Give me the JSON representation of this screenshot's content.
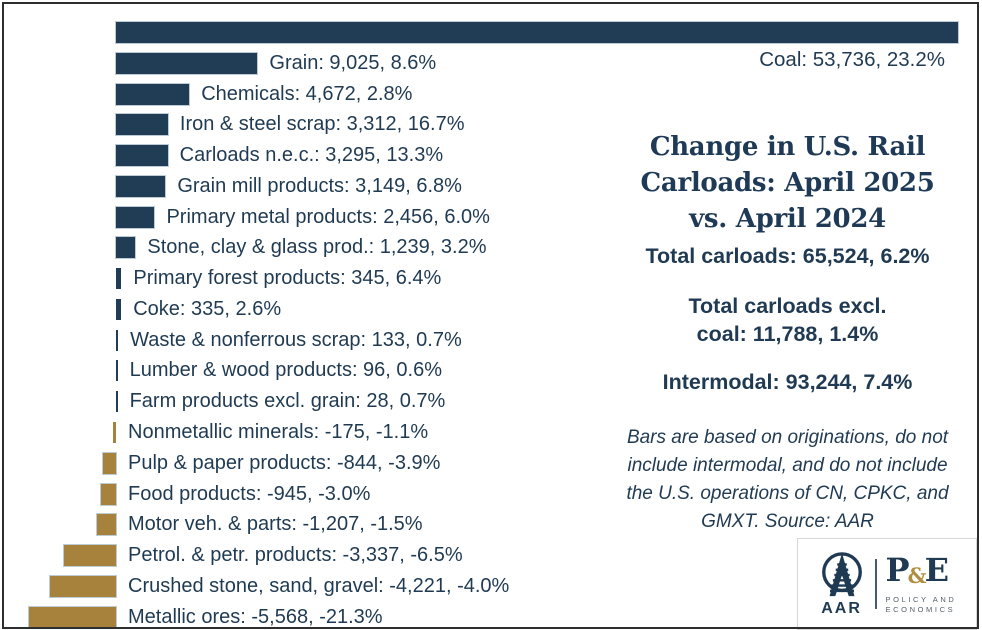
{
  "header": {
    "title_lines": [
      "Change in U.S. Rail",
      "Carloads: April 2025",
      "vs. April 2024"
    ]
  },
  "summary": {
    "total_carloads": "Total carloads: 65,524, 6.2%",
    "total_excl_coal_lines": [
      "Total carloads excl.",
      "coal: 11,788, 1.4%"
    ],
    "intermodal": "Intermodal: 93,244, 7.4%"
  },
  "note": "Bars are based on originations, do not include intermodal, and do not include the U.S. operations of CN, CPKC, and GMXT. Source: AAR",
  "logo": {
    "aar": "AAR",
    "pe_p": "P",
    "pe_amp": "&",
    "pe_e": "E",
    "policy_lines": [
      "POLICY AND",
      "ECONOMICS"
    ]
  },
  "colors": {
    "positive_bar": "#213C55",
    "negative_bar": "#A6823C",
    "text_navy": "#1F3A52"
  },
  "chart_data": {
    "type": "bar",
    "orientation": "horizontal",
    "value_label_format": "name: carloads_change, pct_change",
    "bars": [
      {
        "name": "Coal",
        "value": 53736,
        "pct": 23.2,
        "label": "Coal: 53,736, 23.2%"
      },
      {
        "name": "Grain",
        "value": 9025,
        "pct": 8.6,
        "label": "Grain: 9,025, 8.6%"
      },
      {
        "name": "Chemicals",
        "value": 4672,
        "pct": 2.8,
        "label": "Chemicals: 4,672, 2.8%"
      },
      {
        "name": "Iron & steel scrap",
        "value": 3312,
        "pct": 16.7,
        "label": "Iron & steel scrap: 3,312, 16.7%"
      },
      {
        "name": "Carloads n.e.c.",
        "value": 3295,
        "pct": 13.3,
        "label": "Carloads n.e.c.: 3,295, 13.3%"
      },
      {
        "name": "Grain mill products",
        "value": 3149,
        "pct": 6.8,
        "label": "Grain mill products: 3,149, 6.8%"
      },
      {
        "name": "Primary metal products",
        "value": 2456,
        "pct": 6.0,
        "label": "Primary metal products: 2,456, 6.0%"
      },
      {
        "name": "Stone, clay & glass prod.",
        "value": 1239,
        "pct": 3.2,
        "label": "Stone, clay & glass prod.: 1,239, 3.2%"
      },
      {
        "name": "Primary forest products",
        "value": 345,
        "pct": 6.4,
        "label": "Primary forest products: 345, 6.4%"
      },
      {
        "name": "Coke",
        "value": 335,
        "pct": 2.6,
        "label": "Coke: 335, 2.6%"
      },
      {
        "name": "Waste & nonferrous scrap",
        "value": 133,
        "pct": 0.7,
        "label": "Waste & nonferrous scrap: 133, 0.7%"
      },
      {
        "name": "Lumber & wood products",
        "value": 96,
        "pct": 0.6,
        "label": "Lumber & wood products: 96, 0.6%"
      },
      {
        "name": "Farm products excl. grain",
        "value": 28,
        "pct": 0.7,
        "label": "Farm products excl. grain: 28, 0.7%"
      },
      {
        "name": "Nonmetallic minerals",
        "value": -175,
        "pct": -1.1,
        "label": "Nonmetallic minerals: -175, -1.1%"
      },
      {
        "name": "Pulp & paper products",
        "value": -844,
        "pct": -3.9,
        "label": "Pulp & paper products: -844, -3.9%"
      },
      {
        "name": "Food products",
        "value": -945,
        "pct": -3.0,
        "label": "Food products: -945, -3.0%"
      },
      {
        "name": "Motor veh. & parts",
        "value": -1207,
        "pct": -1.5,
        "label": "Motor veh. & parts: -1,207, -1.5%"
      },
      {
        "name": "Petrol. & petr. products",
        "value": -3337,
        "pct": -6.5,
        "label": "Petrol. & petr. products: -3,337, -6.5%"
      },
      {
        "name": "Crushed stone, sand, gravel",
        "value": -4221,
        "pct": -4.0,
        "label": "Crushed stone, sand, gravel: -4,221, -4.0%"
      },
      {
        "name": "Metallic ores",
        "value": -5568,
        "pct": -21.3,
        "label": "Metallic ores: -5,568, -21.3%"
      }
    ],
    "legend": "none",
    "grid": false,
    "axis_labels": "none"
  }
}
